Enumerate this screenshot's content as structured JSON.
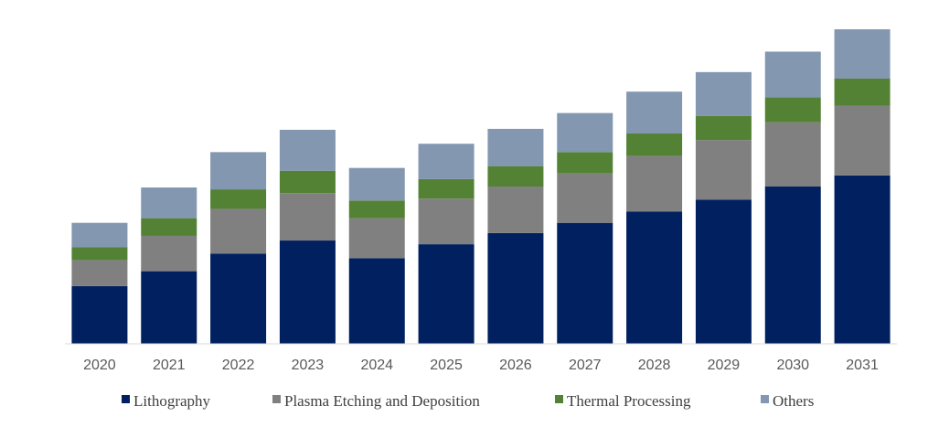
{
  "chart_data": {
    "type": "bar",
    "stacked": true,
    "title": "",
    "xlabel": "",
    "ylabel": "",
    "y_axis_visible": false,
    "grid": false,
    "legend_position": "bottom",
    "ylim": [
      0,
      340
    ],
    "categories": [
      "2020",
      "2021",
      "2022",
      "2023",
      "2024",
      "2025",
      "2026",
      "2027",
      "2028",
      "2029",
      "2030",
      "2031"
    ],
    "series": [
      {
        "name": "Lithography",
        "color": "#002060",
        "values": [
          62,
          78,
          97,
          111,
          92,
          107,
          119,
          130,
          142,
          155,
          169,
          181
        ]
      },
      {
        "name": "Plasma Etching and Deposition",
        "color": "#808080",
        "values": [
          28,
          38,
          48,
          51,
          43,
          49,
          50,
          53,
          60,
          64,
          69,
          75
        ]
      },
      {
        "name": "Thermal Processing",
        "color": "#548235",
        "values": [
          14,
          19,
          21,
          24,
          19,
          21,
          22,
          23,
          24,
          26,
          27,
          29
        ]
      },
      {
        "name": "Others",
        "color": "#8497B0",
        "values": [
          26,
          33,
          40,
          44,
          35,
          38,
          40,
          42,
          45,
          47,
          49,
          53
        ]
      }
    ]
  }
}
